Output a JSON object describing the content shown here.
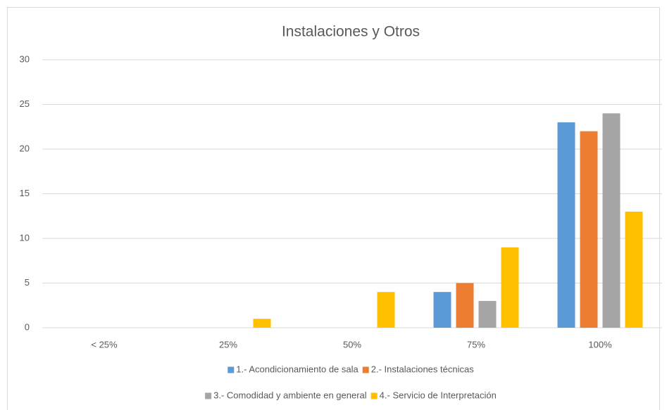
{
  "chart_data": {
    "type": "bar",
    "title": "Instalaciones y Otros",
    "categories": [
      "< 25%",
      "25%",
      "50%",
      "75%",
      "100%"
    ],
    "series": [
      {
        "name": "1.- Acondicionamiento de sala",
        "color": "#5b9bd5",
        "values": [
          0,
          0,
          0,
          4,
          23
        ]
      },
      {
        "name": "2.- Instalaciones técnicas",
        "color": "#ed7d31",
        "values": [
          0,
          0,
          0,
          5,
          22
        ]
      },
      {
        "name": "3.- Comodidad y ambiente en general",
        "color": "#a5a5a5",
        "values": [
          0,
          0,
          0,
          3,
          24
        ]
      },
      {
        "name": "4.- Servicio de Interpretación",
        "color": "#ffc000",
        "values": [
          0,
          1,
          4,
          9,
          13
        ]
      }
    ],
    "ylim": [
      0,
      30
    ],
    "yticks": [
      0,
      5,
      10,
      15,
      20,
      25,
      30
    ],
    "grid": true,
    "legend": "bottom"
  }
}
